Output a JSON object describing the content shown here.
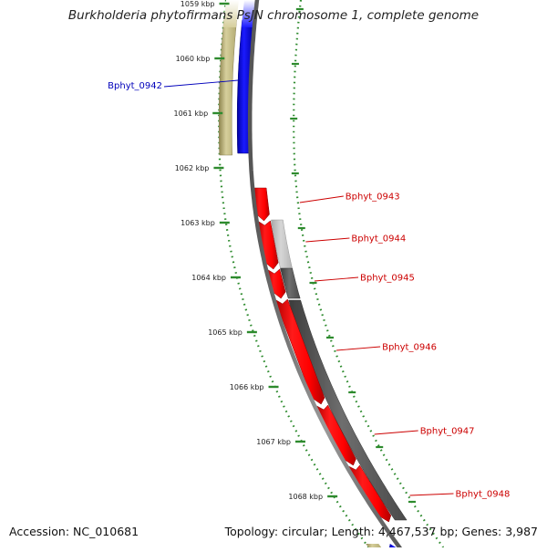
{
  "title": "Burkholderia phytofirmans PsJN chromosome 1, complete genome",
  "footer": {
    "accession": "Accession: NC_010681",
    "summary": "Topology: circular; Length: 4,467,537 bp; Genes: 3,987"
  },
  "ticks": [
    "1059 kbp",
    "1060 kbp",
    "1061 kbp",
    "1062 kbp",
    "1063 kbp",
    "1064 kbp",
    "1065 kbp",
    "1066 kbp",
    "1067 kbp",
    "1068 kbp"
  ],
  "genes": [
    {
      "label": "Bphyt_0942",
      "strand": "reverse",
      "color": "#0000ff"
    },
    {
      "label": "Bphyt_0943",
      "strand": "forward",
      "color": "#ff0000"
    },
    {
      "label": "Bphyt_0944",
      "strand": "forward",
      "color": "#ff0000"
    },
    {
      "label": "Bphyt_0945",
      "strand": "forward",
      "color": "#ff0000"
    },
    {
      "label": "Bphyt_0946",
      "strand": "forward",
      "color": "#ff0000"
    },
    {
      "label": "Bphyt_0947",
      "strand": "forward",
      "color": "#ff0000"
    },
    {
      "label": "Bphyt_0948",
      "strand": "forward",
      "color": "#ff0000"
    }
  ],
  "colors": {
    "backbone": "#777777",
    "tick": "#2e8b2e",
    "gene_forward": "#ff0000",
    "gene_reverse": "#0000ff",
    "reverse_label": "#0000bb",
    "forward_label": "#cc0000",
    "feature_khaki": "#c8c090",
    "feature_gray": "#606060"
  }
}
